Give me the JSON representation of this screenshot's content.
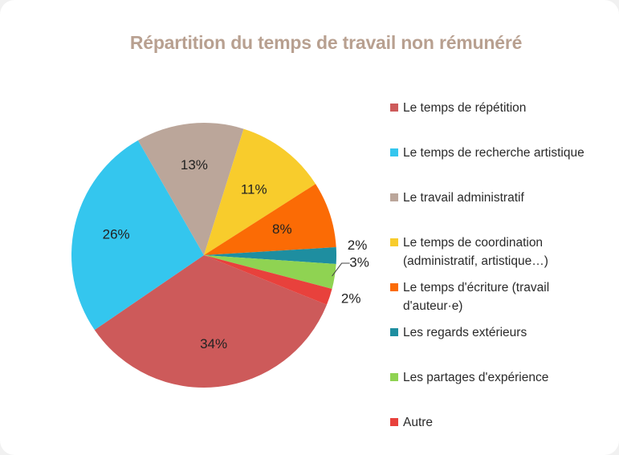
{
  "chart_data": {
    "type": "pie",
    "title": "Répartition du temps de travail non rémunéré",
    "title_color": "#b8a090",
    "legend_position": "right",
    "slices": [
      {
        "label": "Le temps de répétition",
        "value": 34,
        "display": "34%",
        "color": "#cd5a5a"
      },
      {
        "label": "Le temps de recherche artistique",
        "value": 26,
        "display": "26%",
        "color": "#34c6ee"
      },
      {
        "label": "Le travail administratif",
        "value": 13,
        "display": "13%",
        "color": "#bba69a"
      },
      {
        "label": "Le temps de coordination (administratif, artistique…)",
        "value": 11,
        "display": "11%",
        "color": "#f8cc2c"
      },
      {
        "label": "Le temps d'écriture (travail d'auteur·e)",
        "value": 8,
        "display": "8%",
        "color": "#fb6b05"
      },
      {
        "label": "Les regards extérieurs",
        "value": 2,
        "display": "2%",
        "color": "#1e8ea0"
      },
      {
        "label": "Les partages d'expérience",
        "value": 3,
        "display": "3%",
        "color": "#8fd352"
      },
      {
        "label": "Autre",
        "value": 2,
        "display": "2%",
        "color": "#e8413c"
      }
    ]
  }
}
